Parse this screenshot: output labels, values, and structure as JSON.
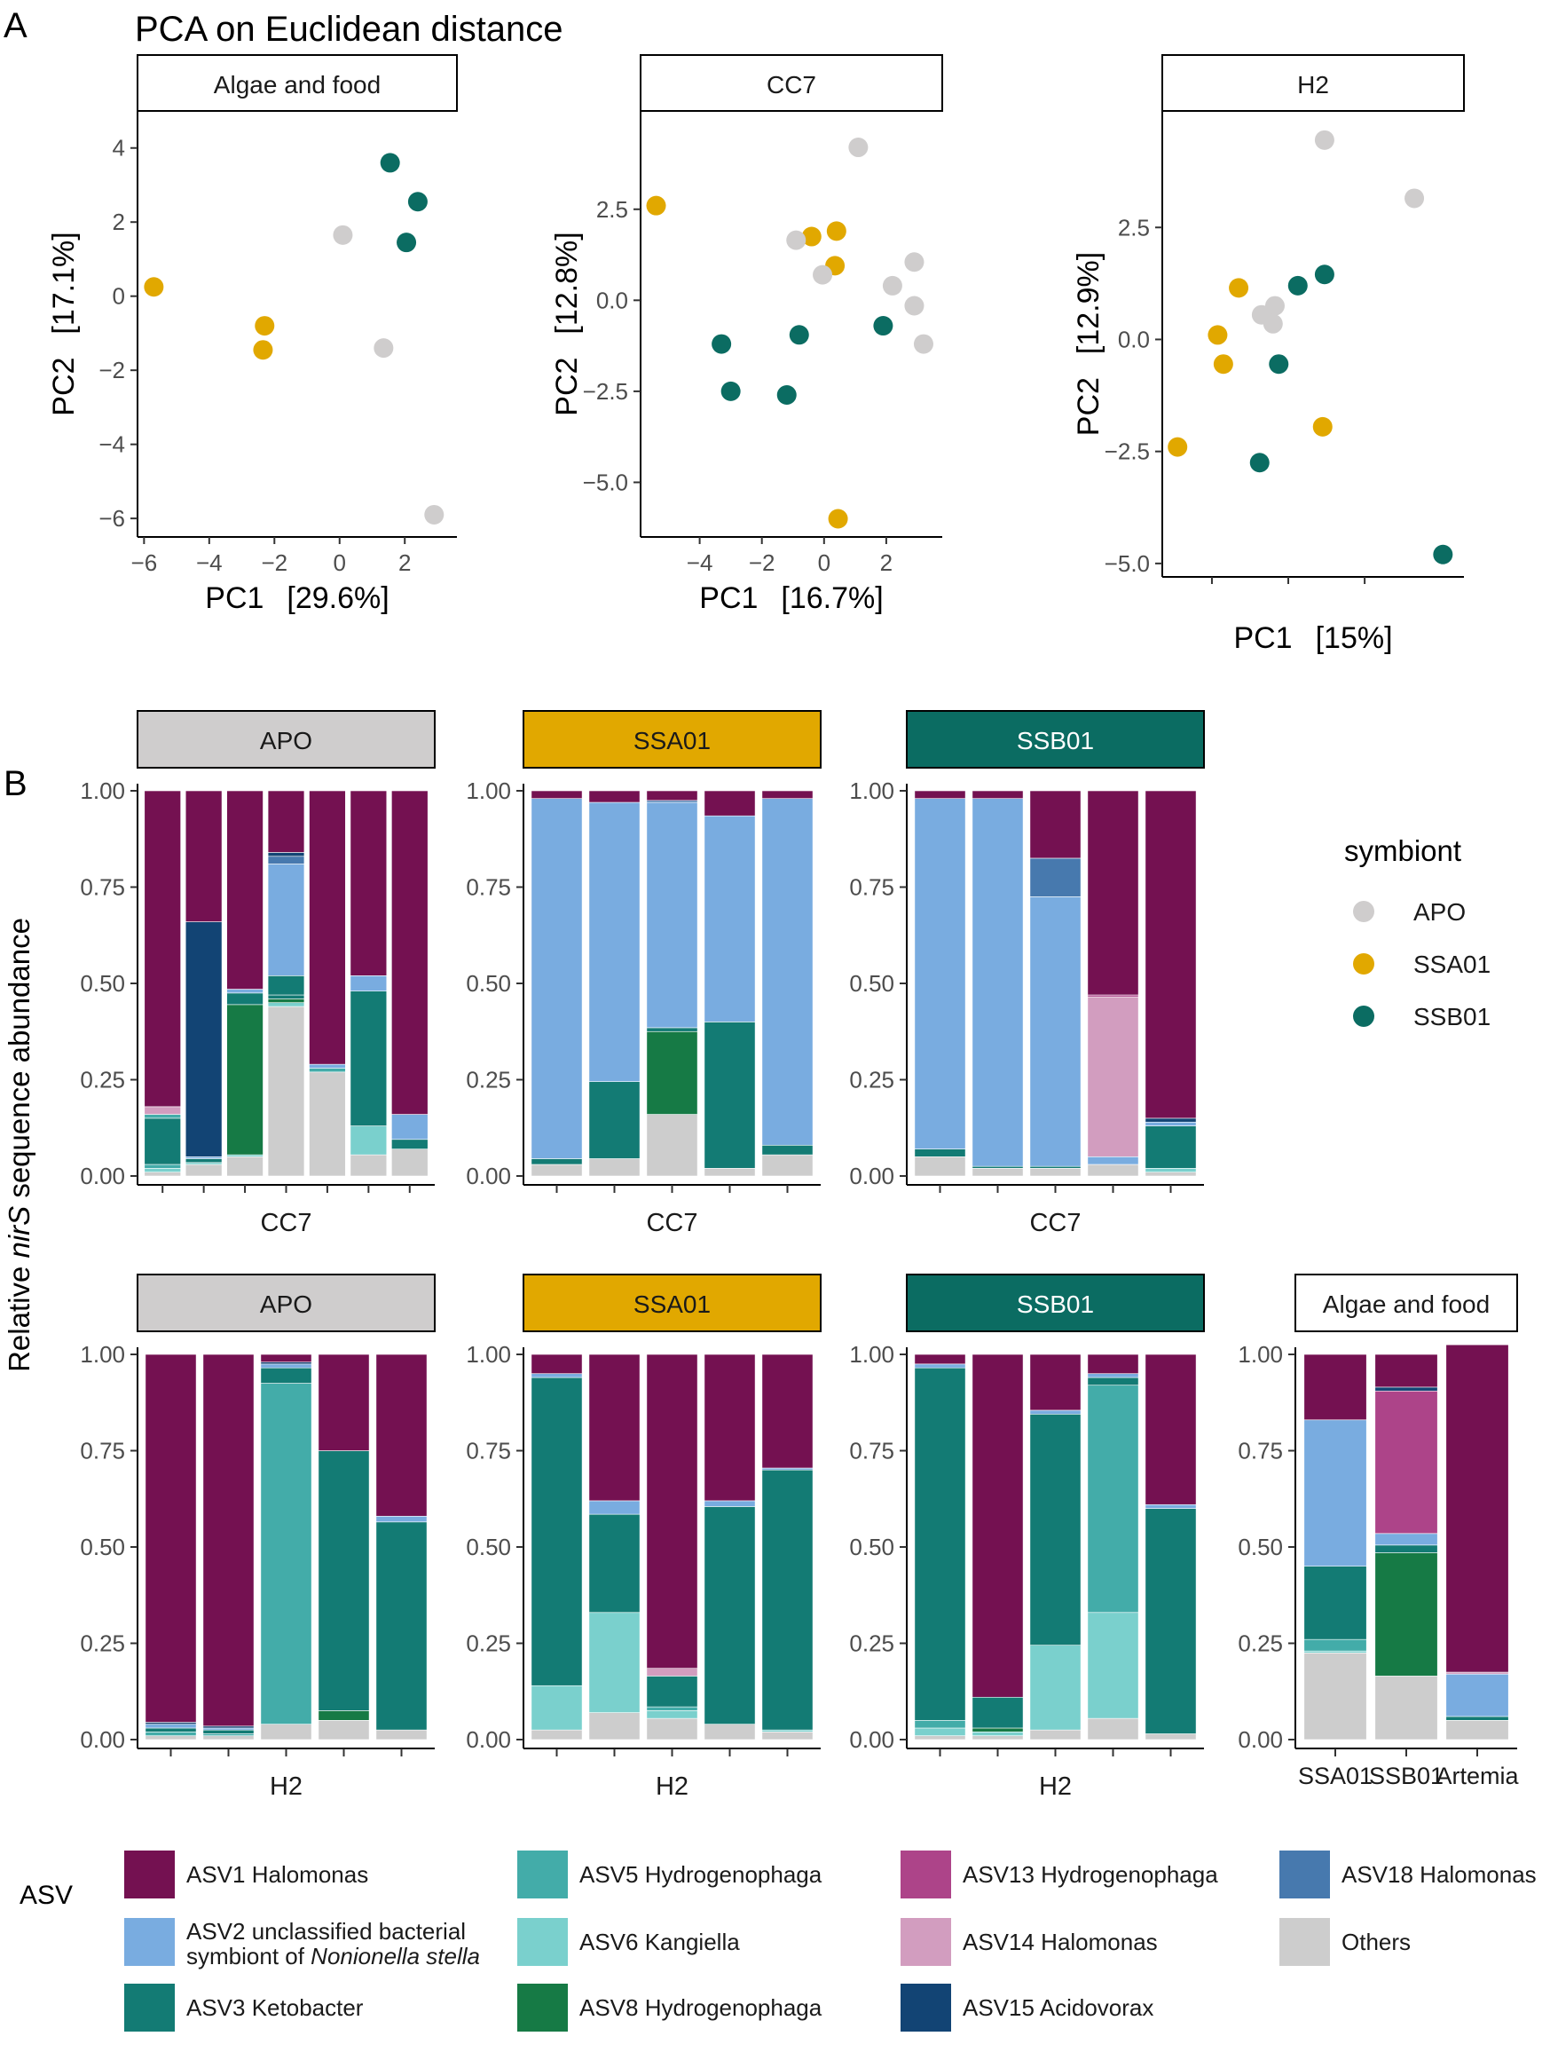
{
  "colors": {
    "APO": "#cfcdcd",
    "SSA01": "#e1a800",
    "SSB01": "#0b6c62",
    "ASV1": "#741151",
    "ASV2": "#79ace0",
    "ASV3": "#137b74",
    "ASV5": "#43aca9",
    "ASV6": "#7ad0cd",
    "ASV8": "#167a45",
    "ASV13": "#ad4489",
    "ASV14": "#d29dbf",
    "ASV15": "#124474",
    "ASV18": "#4779ae",
    "Others": "#cdcdcd"
  },
  "panel_a": {
    "label": "A",
    "title": "PCA on Euclidean distance"
  },
  "panel_b": {
    "label": "B",
    "ylabel_prefix": "Relative ",
    "ylabel_italic": "nirS",
    "ylabel_suffix": " sequence abundance"
  },
  "legend_symbiont": {
    "title": "symbiont",
    "items": [
      "APO",
      "SSA01",
      "SSB01"
    ]
  },
  "legend_asv": {
    "title": "ASV",
    "items": [
      {
        "key": "ASV1",
        "label": "ASV1 Halomonas"
      },
      {
        "key": "ASV2",
        "label": "ASV2 unclassified bacterial",
        "label2_prefix": "symbiont of ",
        "label2_italic": "Nonionella stella"
      },
      {
        "key": "ASV3",
        "label": "ASV3 Ketobacter"
      },
      {
        "key": "ASV5",
        "label": "ASV5 Hydrogenophaga"
      },
      {
        "key": "ASV6",
        "label": "ASV6 Kangiella"
      },
      {
        "key": "ASV8",
        "label": "ASV8 Hydrogenophaga"
      },
      {
        "key": "ASV13",
        "label": "ASV13 Hydrogenophaga"
      },
      {
        "key": "ASV14",
        "label": "ASV14 Halomonas"
      },
      {
        "key": "ASV15",
        "label": "ASV15 Acidovorax"
      },
      {
        "key": "ASV18",
        "label": "ASV18 Halomonas"
      },
      {
        "key": "Others",
        "label": "Others"
      }
    ]
  },
  "chart_data": [
    {
      "type": "scatter",
      "id": "pca1",
      "title": "Algae and food",
      "xlabel": "PC1",
      "xpct": "[29.6%]",
      "ylabel": "PC2",
      "ypct": "[17.1%]",
      "xlim": [
        -6.2,
        3.6
      ],
      "ylim": [
        -6.5,
        5.0
      ],
      "xticks": [
        -6,
        -4,
        -2,
        0,
        2
      ],
      "xticklabels": [
        "−6",
        "−4",
        "−2",
        "0",
        "2"
      ],
      "yticks": [
        -6,
        -4,
        -2,
        0,
        2,
        4
      ],
      "yticklabels": [
        "−6",
        "−4",
        "−2",
        "0",
        "2",
        "4"
      ],
      "points": [
        {
          "x": -5.7,
          "y": 0.25,
          "g": "SSA01"
        },
        {
          "x": -2.3,
          "y": -0.8,
          "g": "SSA01"
        },
        {
          "x": -2.35,
          "y": -1.45,
          "g": "SSA01"
        },
        {
          "x": 0.1,
          "y": 1.65,
          "g": "APO"
        },
        {
          "x": 1.35,
          "y": -1.4,
          "g": "APO"
        },
        {
          "x": 2.9,
          "y": -5.9,
          "g": "APO"
        },
        {
          "x": 1.55,
          "y": 3.6,
          "g": "SSB01"
        },
        {
          "x": 2.4,
          "y": 2.55,
          "g": "SSB01"
        },
        {
          "x": 2.05,
          "y": 1.45,
          "g": "SSB01"
        }
      ]
    },
    {
      "type": "scatter",
      "id": "pca2",
      "title": "CC7",
      "xlabel": "PC1",
      "xpct": "[16.7%]",
      "ylabel": "PC2",
      "ypct": "[12.8%]",
      "xlim": [
        -5.9,
        3.8
      ],
      "ylim": [
        -6.5,
        5.2
      ],
      "xticks": [
        -4,
        -2,
        0,
        2
      ],
      "xticklabels": [
        "−4",
        "−2",
        "0",
        "2"
      ],
      "yticks": [
        -5,
        -2.5,
        0,
        2.5
      ],
      "yticklabels": [
        "−5.0",
        "−2.5",
        "0.0",
        "2.5"
      ],
      "points": [
        {
          "x": -5.4,
          "y": 2.6,
          "g": "SSA01"
        },
        {
          "x": -0.4,
          "y": 1.75,
          "g": "SSA01"
        },
        {
          "x": 0.4,
          "y": 1.9,
          "g": "SSA01"
        },
        {
          "x": 0.35,
          "y": 0.95,
          "g": "SSA01"
        },
        {
          "x": 0.45,
          "y": -6.0,
          "g": "SSA01"
        },
        {
          "x": 1.1,
          "y": 4.2,
          "g": "APO"
        },
        {
          "x": -0.9,
          "y": 1.65,
          "g": "APO"
        },
        {
          "x": -0.05,
          "y": 0.7,
          "g": "APO"
        },
        {
          "x": 2.9,
          "y": 1.05,
          "g": "APO"
        },
        {
          "x": 2.2,
          "y": 0.4,
          "g": "APO"
        },
        {
          "x": 2.9,
          "y": -0.15,
          "g": "APO"
        },
        {
          "x": 3.2,
          "y": -1.2,
          "g": "APO"
        },
        {
          "x": -3.3,
          "y": -1.2,
          "g": "SSB01"
        },
        {
          "x": -3.0,
          "y": -2.5,
          "g": "SSB01"
        },
        {
          "x": -0.8,
          "y": -0.95,
          "g": "SSB01"
        },
        {
          "x": -1.2,
          "y": -2.6,
          "g": "SSB01"
        },
        {
          "x": 1.9,
          "y": -0.7,
          "g": "SSB01"
        }
      ]
    },
    {
      "type": "scatter",
      "id": "pca3",
      "title": "H2",
      "xlabel": "PC1",
      "xpct": "[15%]",
      "ylabel": "PC2",
      "ypct": "[12.9%]",
      "xlim": [
        -4.3,
        3.6
      ],
      "ylim": [
        -5.3,
        5.1
      ],
      "xticks": [
        -3,
        -1,
        1
      ],
      "xticklabels": [
        "",
        "",
        ""
      ],
      "yticks": [
        -5,
        -2.5,
        0,
        2.5
      ],
      "yticklabels": [
        "−5.0",
        "−2.5",
        "0.0",
        "2.5"
      ],
      "points": [
        {
          "x": -2.3,
          "y": 1.15,
          "g": "SSA01"
        },
        {
          "x": -2.85,
          "y": 0.1,
          "g": "SSA01"
        },
        {
          "x": -2.7,
          "y": -0.55,
          "g": "SSA01"
        },
        {
          "x": -3.9,
          "y": -2.4,
          "g": "SSA01"
        },
        {
          "x": -0.1,
          "y": -1.95,
          "g": "SSA01"
        },
        {
          "x": -0.05,
          "y": 4.45,
          "g": "APO"
        },
        {
          "x": 2.3,
          "y": 3.15,
          "g": "APO"
        },
        {
          "x": -1.35,
          "y": 0.75,
          "g": "APO"
        },
        {
          "x": -1.7,
          "y": 0.55,
          "g": "APO"
        },
        {
          "x": -1.4,
          "y": 0.35,
          "g": "APO"
        },
        {
          "x": -0.75,
          "y": 1.2,
          "g": "SSB01"
        },
        {
          "x": -0.05,
          "y": 1.45,
          "g": "SSB01"
        },
        {
          "x": -1.25,
          "y": -0.55,
          "g": "SSB01"
        },
        {
          "x": -1.75,
          "y": -2.75,
          "g": "SSB01"
        },
        {
          "x": 3.05,
          "y": -4.8,
          "g": "SSB01"
        }
      ]
    },
    {
      "type": "bar",
      "id": "b1",
      "strip": "APO",
      "xlabel": "CC7",
      "yticklabels": [
        "0.00",
        "0.25",
        "0.50",
        "0.75",
        "1.00"
      ],
      "bars": [
        {
          "Others": 0.01,
          "ASV6": 0.01,
          "ASV5": 0.01,
          "ASV3": 0.12,
          "ASV5b": 0.01,
          "ASV14": 0.02,
          "ASV1": 0.82
        },
        {
          "Others": 0.03,
          "ASV3": 0.01,
          "ASV6": 0.005,
          "ASV2": 0.005,
          "ASV15": 0.61,
          "ASV1": 0.34
        },
        {
          "Others": 0.05,
          "ASV8": 0.39,
          "ASV3": 0.03,
          "ASV2": 0.01,
          "ASV6": 0.005,
          "ASV1": 0.515
        },
        {
          "Others": 0.44,
          "ASV3": 0.01,
          "ASV6": 0.01,
          "ASV8": 0.01,
          "ASV3b": 0.05,
          "ASV2": 0.29,
          "ASV18": 0.02,
          "ASV15": 0.01,
          "ASV1": 0.16
        },
        {
          "Others": 0.27,
          "ASV5": 0.01,
          "ASV2": 0.01,
          "ASV1": 0.71
        },
        {
          "Others": 0.055,
          "ASV6": 0.075,
          "ASV3": 0.35,
          "ASV2": 0.04,
          "ASV1": 0.48
        },
        {
          "Others": 0.07,
          "ASV3": 0.025,
          "ASV2": 0.065,
          "ASV1": 0.84
        }
      ]
    },
    {
      "type": "bar",
      "id": "b2",
      "strip": "SSA01",
      "xlabel": "CC7",
      "yticklabels": [
        "0.00",
        "0.25",
        "0.50",
        "0.75",
        "1.00"
      ],
      "bars": [
        {
          "Others": 0.03,
          "ASV3": 0.015,
          "ASV2": 0.935,
          "ASV1": 0.02
        },
        {
          "Others": 0.045,
          "ASV3": 0.2,
          "ASV2": 0.725,
          "ASV1": 0.03
        },
        {
          "Others": 0.16,
          "ASV8": 0.215,
          "ASV3": 0.01,
          "ASV2": 0.585,
          "ASV18": 0.005,
          "ASV1": 0.025
        },
        {
          "Others": 0.02,
          "ASV3": 0.38,
          "ASV2": 0.535,
          "ASV1": 0.065
        },
        {
          "Others": 0.055,
          "ASV3": 0.025,
          "ASV2": 0.9,
          "ASV1": 0.02
        }
      ]
    },
    {
      "type": "bar",
      "id": "b3",
      "strip": "SSB01",
      "xlabel": "CC7",
      "yticklabels": [
        "0.00",
        "0.25",
        "0.50",
        "0.75",
        "1.00"
      ],
      "bars": [
        {
          "Others": 0.05,
          "ASV3": 0.02,
          "ASV2": 0.91,
          "ASV1": 0.02
        },
        {
          "Others": 0.02,
          "ASV3": 0.005,
          "ASV2": 0.955,
          "ASV1": 0.02
        },
        {
          "Others": 0.02,
          "ASV3": 0.005,
          "ASV2": 0.7,
          "ASV18": 0.1,
          "ASV1": 0.175
        },
        {
          "Others": 0.03,
          "ASV2": 0.02,
          "ASV13": 0.005,
          "ASV14": 0.415,
          "ASV1": 0.53
        },
        {
          "Others": 0.01,
          "ASV6": 0.01,
          "ASV3": 0.11,
          "ASV2": 0.01,
          "ASV15": 0.01,
          "ASV1": 0.85
        }
      ]
    },
    {
      "type": "bar",
      "id": "b4",
      "strip": "APO",
      "xlabel": "H2",
      "yticklabels": [
        "0.00",
        "0.25",
        "0.50",
        "0.75",
        "1.00"
      ],
      "bars": [
        {
          "Others": 0.01,
          "ASV5": 0.01,
          "ASV3": 0.01,
          "ASV2": 0.01,
          "ASV15": 0.005,
          "ASV1": 0.955
        },
        {
          "Others": 0.01,
          "ASV5": 0.005,
          "ASV3": 0.01,
          "ASV2": 0.005,
          "ASV15": 0.005,
          "ASV1": 0.965
        },
        {
          "Others": 0.04,
          "ASV5": 0.885,
          "ASV3": 0.04,
          "ASV2": 0.01,
          "ASV15": 0.005,
          "ASV1": 0.02
        },
        {
          "Others": 0.05,
          "ASV8": 0.025,
          "ASV3": 0.675,
          "ASV1": 0.25
        },
        {
          "Others": 0.025,
          "ASV3": 0.54,
          "ASV2": 0.015,
          "ASV1": 0.42
        }
      ]
    },
    {
      "type": "bar",
      "id": "b5",
      "strip": "SSA01",
      "xlabel": "H2",
      "yticklabels": [
        "0.00",
        "0.25",
        "0.50",
        "0.75",
        "1.00"
      ],
      "bars": [
        {
          "Others": 0.025,
          "ASV6": 0.115,
          "ASV3": 0.8,
          "ASV2": 0.01,
          "ASV1": 0.05
        },
        {
          "Others": 0.07,
          "ASV6": 0.26,
          "ASV3": 0.255,
          "ASV2": 0.035,
          "ASV1": 0.38
        },
        {
          "Others": 0.055,
          "ASV6": 0.02,
          "ASV5": 0.01,
          "ASV3": 0.08,
          "ASV14": 0.02,
          "ASV1": 0.815
        },
        {
          "Others": 0.04,
          "ASV3": 0.565,
          "ASV2": 0.015,
          "ASV1": 0.38
        },
        {
          "Others": 0.02,
          "ASV6": 0.005,
          "ASV3": 0.675,
          "ASV2": 0.005,
          "ASV1": 0.295
        }
      ]
    },
    {
      "type": "bar",
      "id": "b6",
      "strip": "SSB01",
      "xlabel": "H2",
      "yticklabels": [
        "0.00",
        "0.25",
        "0.50",
        "0.75",
        "1.00"
      ],
      "bars": [
        {
          "Others": 0.01,
          "ASV6": 0.02,
          "ASV5": 0.02,
          "ASV3": 0.915,
          "ASV2": 0.01,
          "ASV1": 0.025
        },
        {
          "Others": 0.01,
          "ASV6": 0.01,
          "ASV8": 0.01,
          "ASV3": 0.08,
          "ASV1": 0.89
        },
        {
          "Others": 0.025,
          "ASV6": 0.22,
          "ASV3": 0.6,
          "ASV2": 0.01,
          "ASV1": 0.145
        },
        {
          "Others": 0.055,
          "ASV6": 0.275,
          "ASV5": 0.59,
          "ASV3": 0.02,
          "ASV2": 0.01,
          "ASV1": 0.05
        },
        {
          "Others": 0.015,
          "ASV3": 0.585,
          "ASV2": 0.01,
          "ASV1": 0.39
        }
      ]
    },
    {
      "type": "bar",
      "id": "b7",
      "strip": "Algae and food",
      "strip_color": "#ffffff",
      "xlabel": "",
      "categories": [
        "SSA01",
        "SSB01",
        "Artemia"
      ],
      "yticklabels": [
        "0.00",
        "0.25",
        "0.50",
        "0.75",
        "1.00"
      ],
      "bars": [
        {
          "Others": 0.225,
          "ASV6": 0.005,
          "ASV5": 0.03,
          "ASV3": 0.19,
          "ASV2": 0.38,
          "ASV1": 0.17
        },
        {
          "Others": 0.165,
          "ASV8": 0.32,
          "ASV3": 0.02,
          "ASV2": 0.03,
          "ASV15": 0.01,
          "ASV13": 0.37,
          "ASV1": 0.085
        },
        {
          "Others": 0.05,
          "ASV3": 0.01,
          "ASV2": 0.11,
          "ASV14": 0.005,
          "ASV1": 0.85
        }
      ]
    }
  ]
}
